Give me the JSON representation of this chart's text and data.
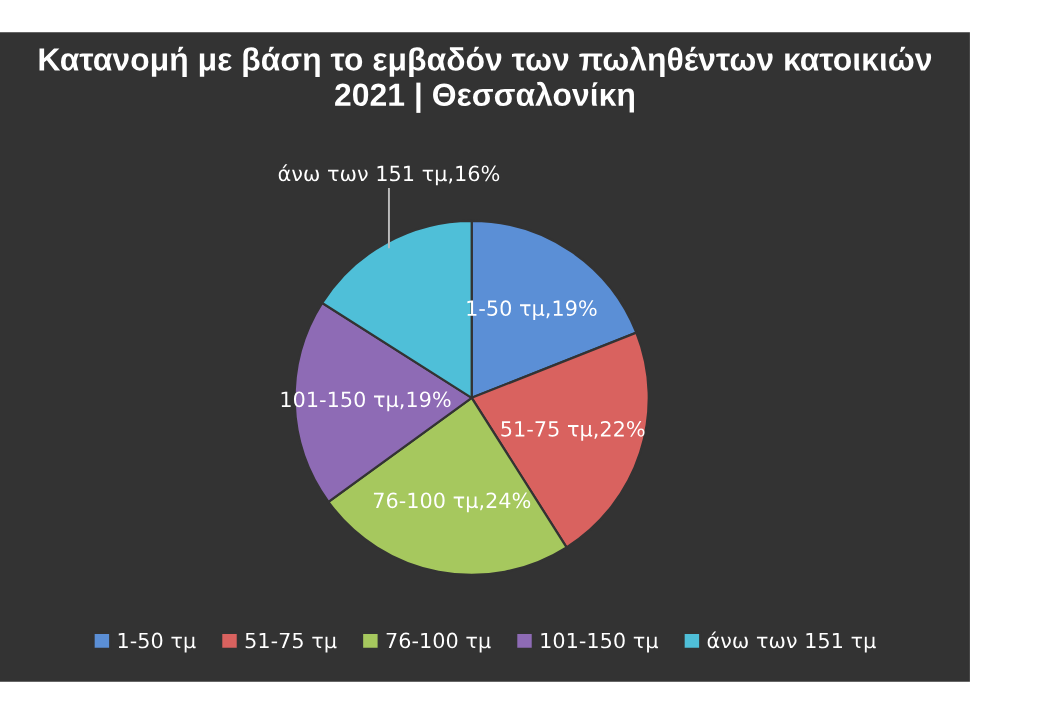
{
  "chart_data": {
    "type": "pie",
    "title": "Κατανομή με βάση το εμβαδόν των πωληθέντων κατοικιών 2021 | Θεσσαλονίκη",
    "categories": [
      "1-50 τμ",
      "51-75 τμ",
      "76-100 τμ",
      "101-150 τμ",
      "άνω των 151 τμ"
    ],
    "values": [
      19,
      22,
      24,
      19,
      16
    ],
    "colors": [
      "#5b8fd6",
      "#d9625f",
      "#a6c85e",
      "#8e6bb5",
      "#4fbfd8"
    ],
    "value_labels": [
      "1-50 τμ,19%",
      "51-75 τμ,22%",
      "76-100 τμ,24%",
      "101-150 τμ,19%",
      "άνω των 151 τμ,16%"
    ],
    "legend": "bottom"
  }
}
